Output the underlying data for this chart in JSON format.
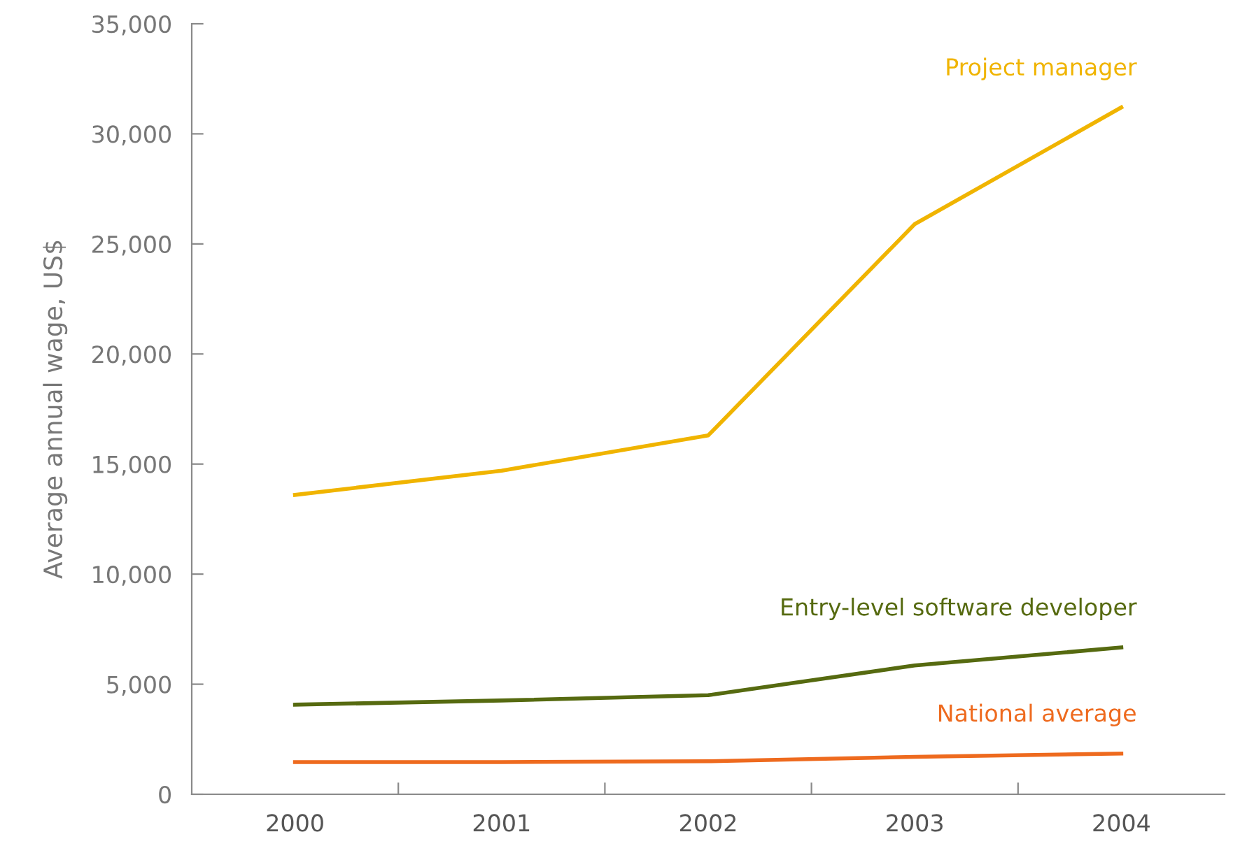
{
  "chart_data": {
    "type": "line",
    "ylabel": "Average annual wage, US$",
    "categories": [
      "2000",
      "2001",
      "2002",
      "2003",
      "2004"
    ],
    "series": [
      {
        "name": "Project manager",
        "color": "#f0b400",
        "values": [
          13600,
          14700,
          16300,
          25900,
          31200
        ]
      },
      {
        "name": "Entry-level software developer",
        "color": "#566a10",
        "values": [
          4070,
          4260,
          4500,
          5850,
          6670
        ]
      },
      {
        "name": "National average",
        "color": "#ee6a1e",
        "values": [
          1460,
          1460,
          1500,
          1700,
          1850
        ]
      }
    ],
    "ylim": [
      0,
      35000
    ],
    "yticks": [
      {
        "value": 0,
        "label": "0"
      },
      {
        "value": 5000,
        "label": "5,000"
      },
      {
        "value": 10000,
        "label": "10,000"
      },
      {
        "value": 15000,
        "label": "15,000"
      },
      {
        "value": 20000,
        "label": "20,000"
      },
      {
        "value": 25000,
        "label": "25,000"
      },
      {
        "value": 30000,
        "label": "30,000"
      },
      {
        "value": 35000,
        "label": "35,000"
      }
    ],
    "grid": false,
    "legend": false,
    "marker": "none",
    "line_style": "solid"
  }
}
